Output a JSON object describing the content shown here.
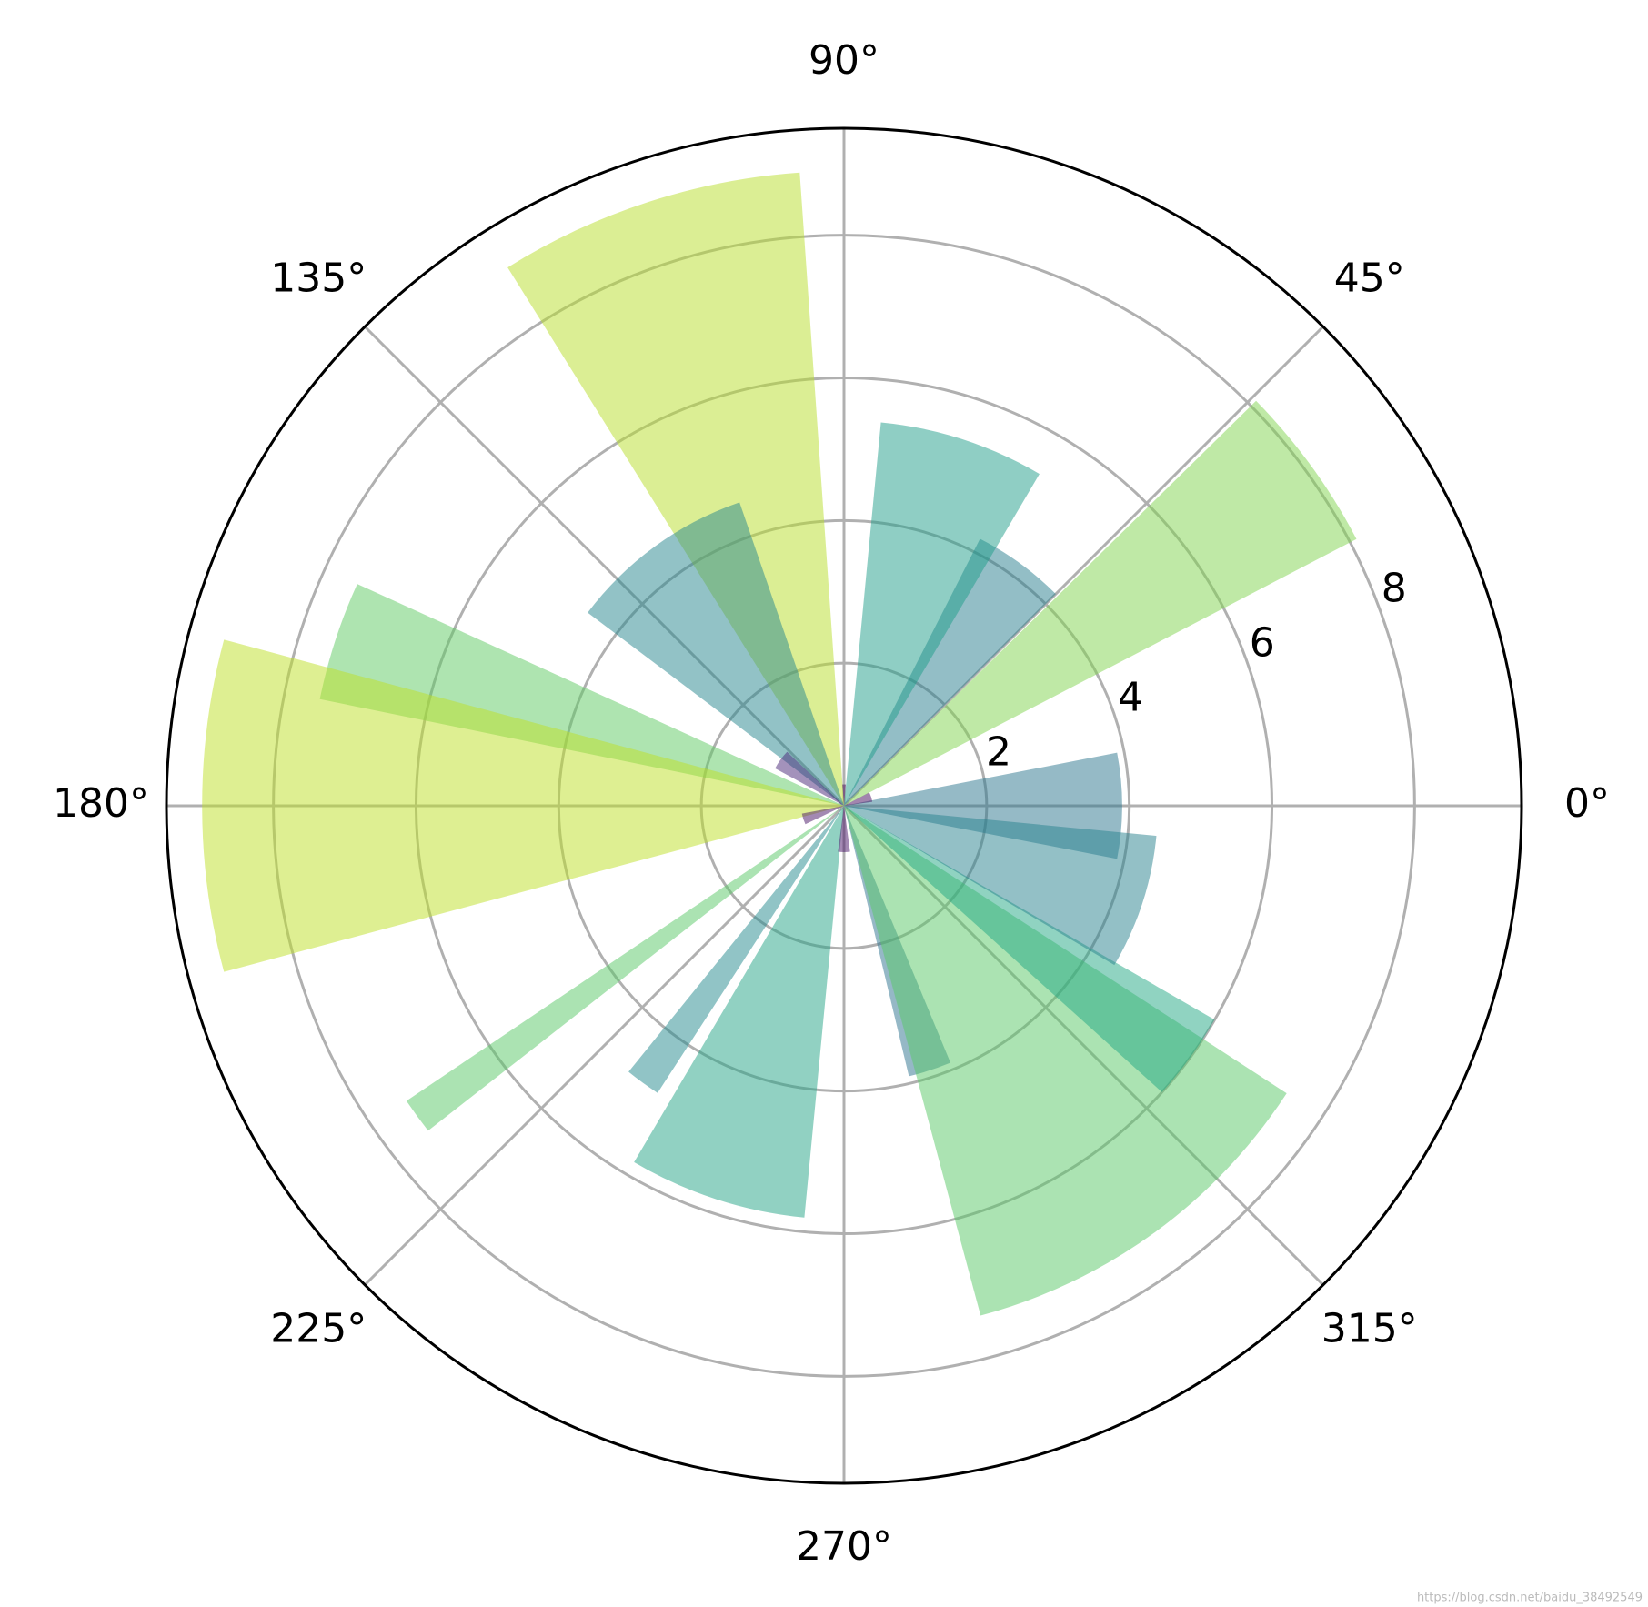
{
  "chart_data": {
    "type": "polar-bar",
    "theta": [
      0,
      18,
      36,
      54,
      72,
      90,
      108,
      126,
      144,
      162,
      180,
      198,
      216,
      234,
      252,
      270,
      288,
      306,
      324,
      342
    ],
    "values": [
      3.9,
      0.4,
      8.1,
      4.2,
      5.4,
      0.3,
      8.9,
      4.5,
      1.1,
      7.5,
      9.0,
      0.6,
      7.4,
      4.8,
      5.8,
      0.65,
      3.9,
      7.4,
      6.0,
      4.4
    ],
    "widths": [
      22,
      20,
      17,
      18,
      25,
      10,
      28,
      34,
      15,
      13,
      30,
      15,
      4,
      6,
      25,
      15,
      9,
      42,
      12,
      25
    ],
    "colors": [
      "#2b758e",
      "#450b5e",
      "#7fd34e",
      "#287d8e",
      "#1f9e89",
      "#46075a",
      "#b8de29",
      "#25858e",
      "#482677",
      "#5ec962",
      "#bddf26",
      "#471365",
      "#58c765",
      "#238a8d",
      "#24a386",
      "#481467",
      "#2c728e",
      "#58c765",
      "#22a884",
      "#27828e"
    ],
    "alpha": 0.5,
    "ylim": [
      0,
      9.5
    ],
    "yticks": [
      2,
      4,
      6,
      8
    ],
    "rlabel_angle": 22.5,
    "xticks": [
      {
        "value": 0,
        "label": "0°"
      },
      {
        "value": 45,
        "label": "45°"
      },
      {
        "value": 90,
        "label": "90°"
      },
      {
        "value": 135,
        "label": "135°"
      },
      {
        "value": 180,
        "label": "180°"
      },
      {
        "value": 225,
        "label": "225°"
      },
      {
        "value": 270,
        "label": "270°"
      },
      {
        "value": 315,
        "label": "315°"
      }
    ],
    "grid": true,
    "watermark": "https://blog.csdn.net/baidu_38492549"
  }
}
